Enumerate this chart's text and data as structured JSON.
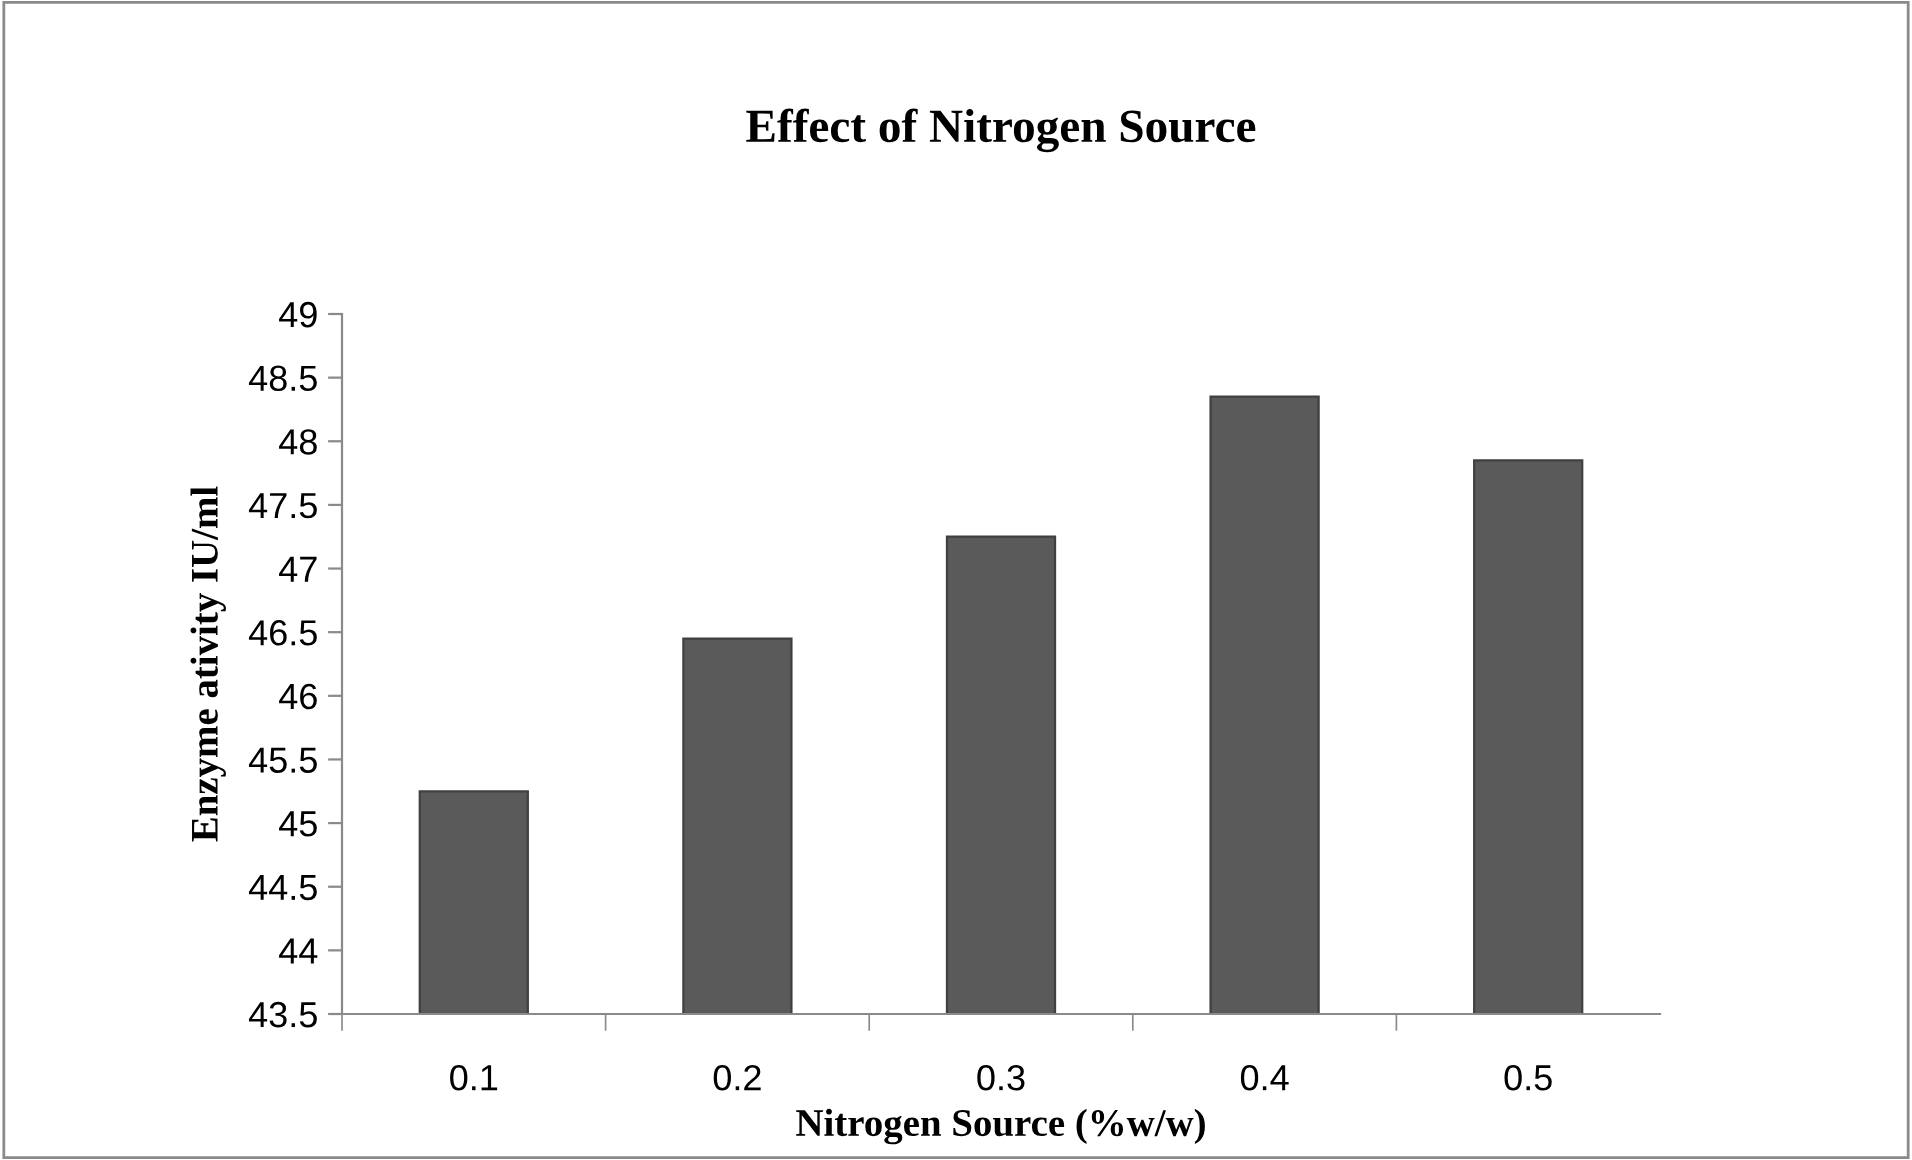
{
  "chart_data": {
    "type": "bar",
    "title": "Effect of Nitrogen Source",
    "xlabel": "Nitrogen Source (%w/w)",
    "ylabel": "Enzyme ativity IU/ml",
    "categories": [
      "0.1",
      "0.2",
      "0.3",
      "0.4",
      "0.5"
    ],
    "values": [
      45.25,
      46.45,
      47.25,
      48.35,
      47.85
    ],
    "color": "#5a5a5a",
    "ylim": [
      43.5,
      49
    ],
    "yticks": [
      {
        "value": 43.5,
        "label": "43.5"
      },
      {
        "value": 44,
        "label": "44"
      },
      {
        "value": 44.5,
        "label": "44.5"
      },
      {
        "value": 45,
        "label": "45"
      },
      {
        "value": 45.5,
        "label": "45.5"
      },
      {
        "value": 46,
        "label": "46"
      },
      {
        "value": 46.5,
        "label": "46.5"
      },
      {
        "value": 47,
        "label": "47"
      },
      {
        "value": 47.5,
        "label": "47.5"
      },
      {
        "value": 48,
        "label": "48"
      },
      {
        "value": 48.5,
        "label": "48.5"
      },
      {
        "value": 49,
        "label": "49"
      }
    ],
    "grid": false,
    "legend": false
  }
}
